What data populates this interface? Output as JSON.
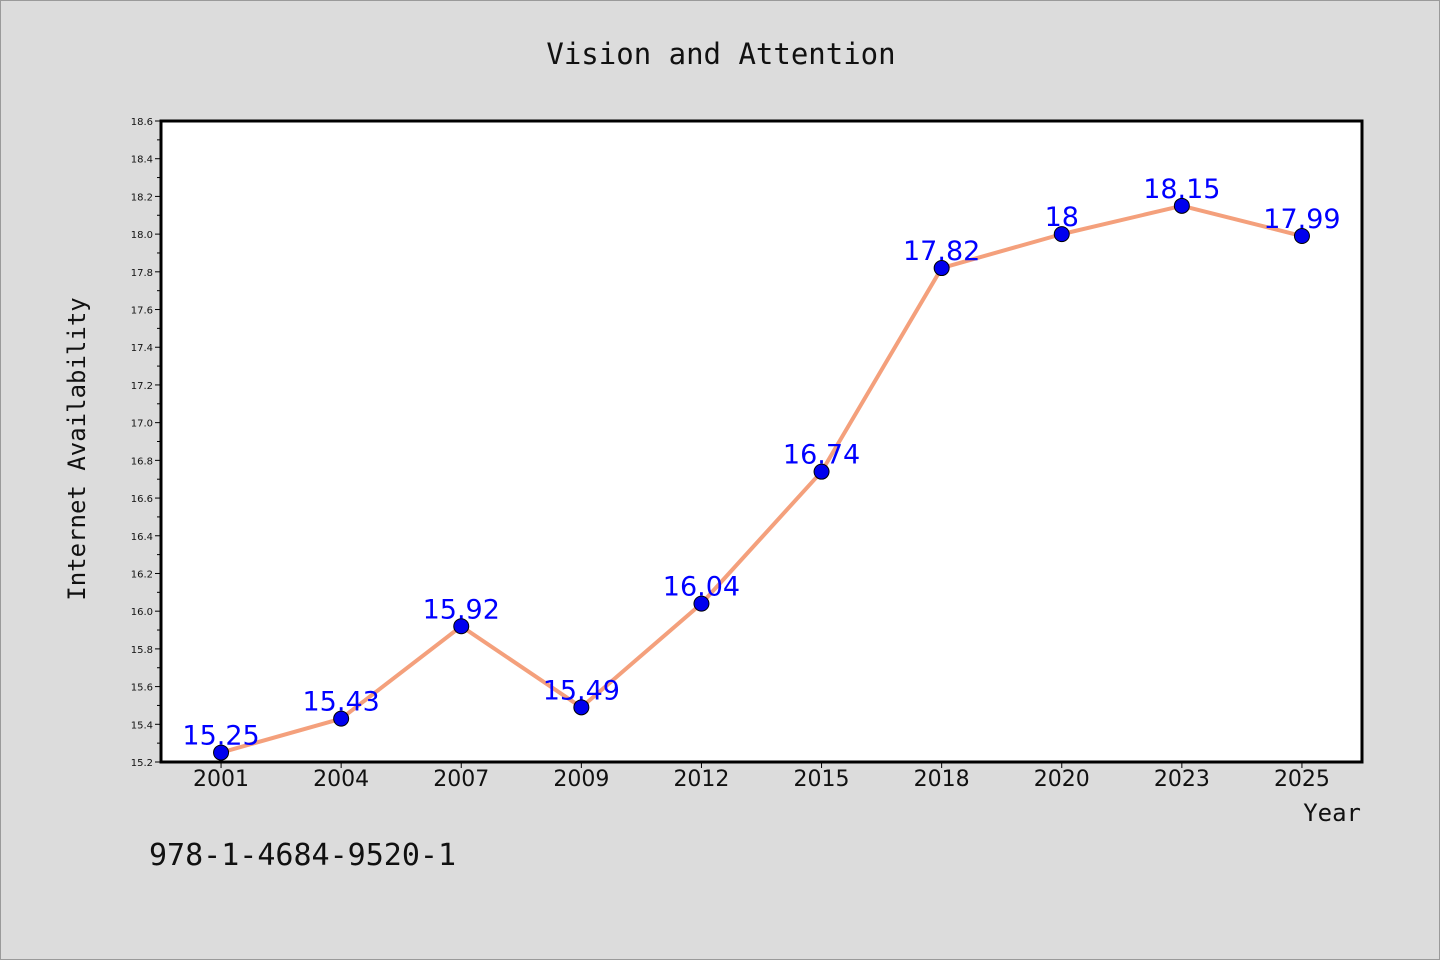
{
  "chart_data": {
    "type": "line",
    "title": "Vision and Attention",
    "xlabel": "Year",
    "ylabel": "Internet Availability",
    "categories": [
      "2001",
      "2004",
      "2007",
      "2009",
      "2012",
      "2015",
      "2018",
      "2020",
      "2023",
      "2025"
    ],
    "series": [
      {
        "values": [
          15.25,
          15.43,
          15.92,
          15.49,
          16.04,
          16.74,
          17.82,
          18,
          18.15,
          17.99
        ],
        "data_labels": [
          "15.25",
          "15.43",
          "15.92",
          "15.49",
          "16.04",
          "16.74",
          "17.82",
          "18",
          "18.15",
          "17.99"
        ],
        "line_color": "#f4a07c",
        "marker_color": "#0000ee"
      }
    ],
    "ylim": [
      15.2,
      18.6
    ],
    "yticks": [
      "15.2",
      "15.4",
      "15.6",
      "15.8",
      "16.0",
      "16.2",
      "16.4",
      "16.6",
      "16.8",
      "17.0",
      "17.2",
      "17.4",
      "17.6",
      "17.8",
      "18.0",
      "18.2",
      "18.4",
      "18.6"
    ],
    "grid": false,
    "label_color": "#0000ff",
    "background_color": "#dcdcdc",
    "plot_background_color": "#ffffff"
  },
  "footer": {
    "isbn": "978-1-4684-9520-1"
  }
}
